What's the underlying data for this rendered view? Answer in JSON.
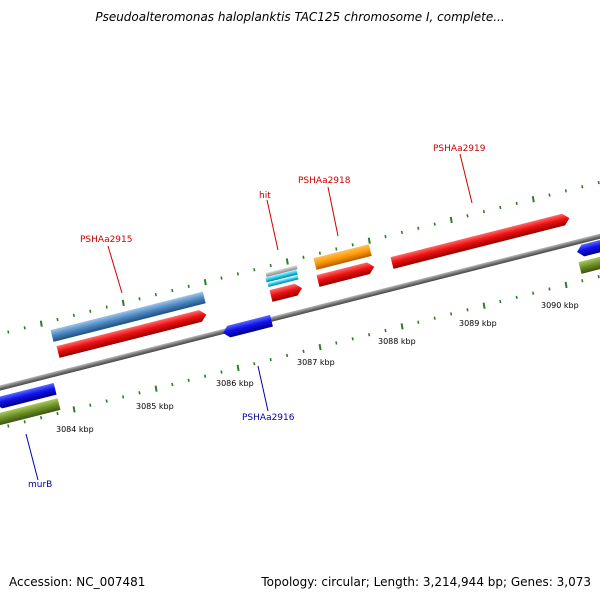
{
  "title": "Pseudoalteromonas haloplanktis TAC125 chromosome I, complete...",
  "footer": {
    "accession": "Accession: NC_007481",
    "summary": "Topology: circular; Length: 3,214,944 bp; Genes: 3,073"
  },
  "ticks": [
    "3084 kbp",
    "3085 kbp",
    "3086 kbp",
    "3087 kbp",
    "3088 kbp",
    "3089 kbp",
    "3090 kbp"
  ],
  "colors": {
    "forward_label": "#cc0000",
    "reverse_label": "#0000aa",
    "axis_line": "#888888",
    "tick": "#2e7d2e"
  },
  "genes": [
    {
      "label": "PSHAa2915",
      "strand": "forward",
      "color": "#cc0000"
    },
    {
      "label": "hit",
      "strand": "forward",
      "color": "#cc0000"
    },
    {
      "label": "PSHAa2918",
      "strand": "forward",
      "color": "#cc0000"
    },
    {
      "label": "PSHAa2919",
      "strand": "forward",
      "color": "#cc0000"
    },
    {
      "label": "PSHAa2916",
      "strand": "reverse",
      "color": "#0000aa"
    },
    {
      "label": "murB",
      "strand": "reverse",
      "color": "#0000aa"
    }
  ]
}
